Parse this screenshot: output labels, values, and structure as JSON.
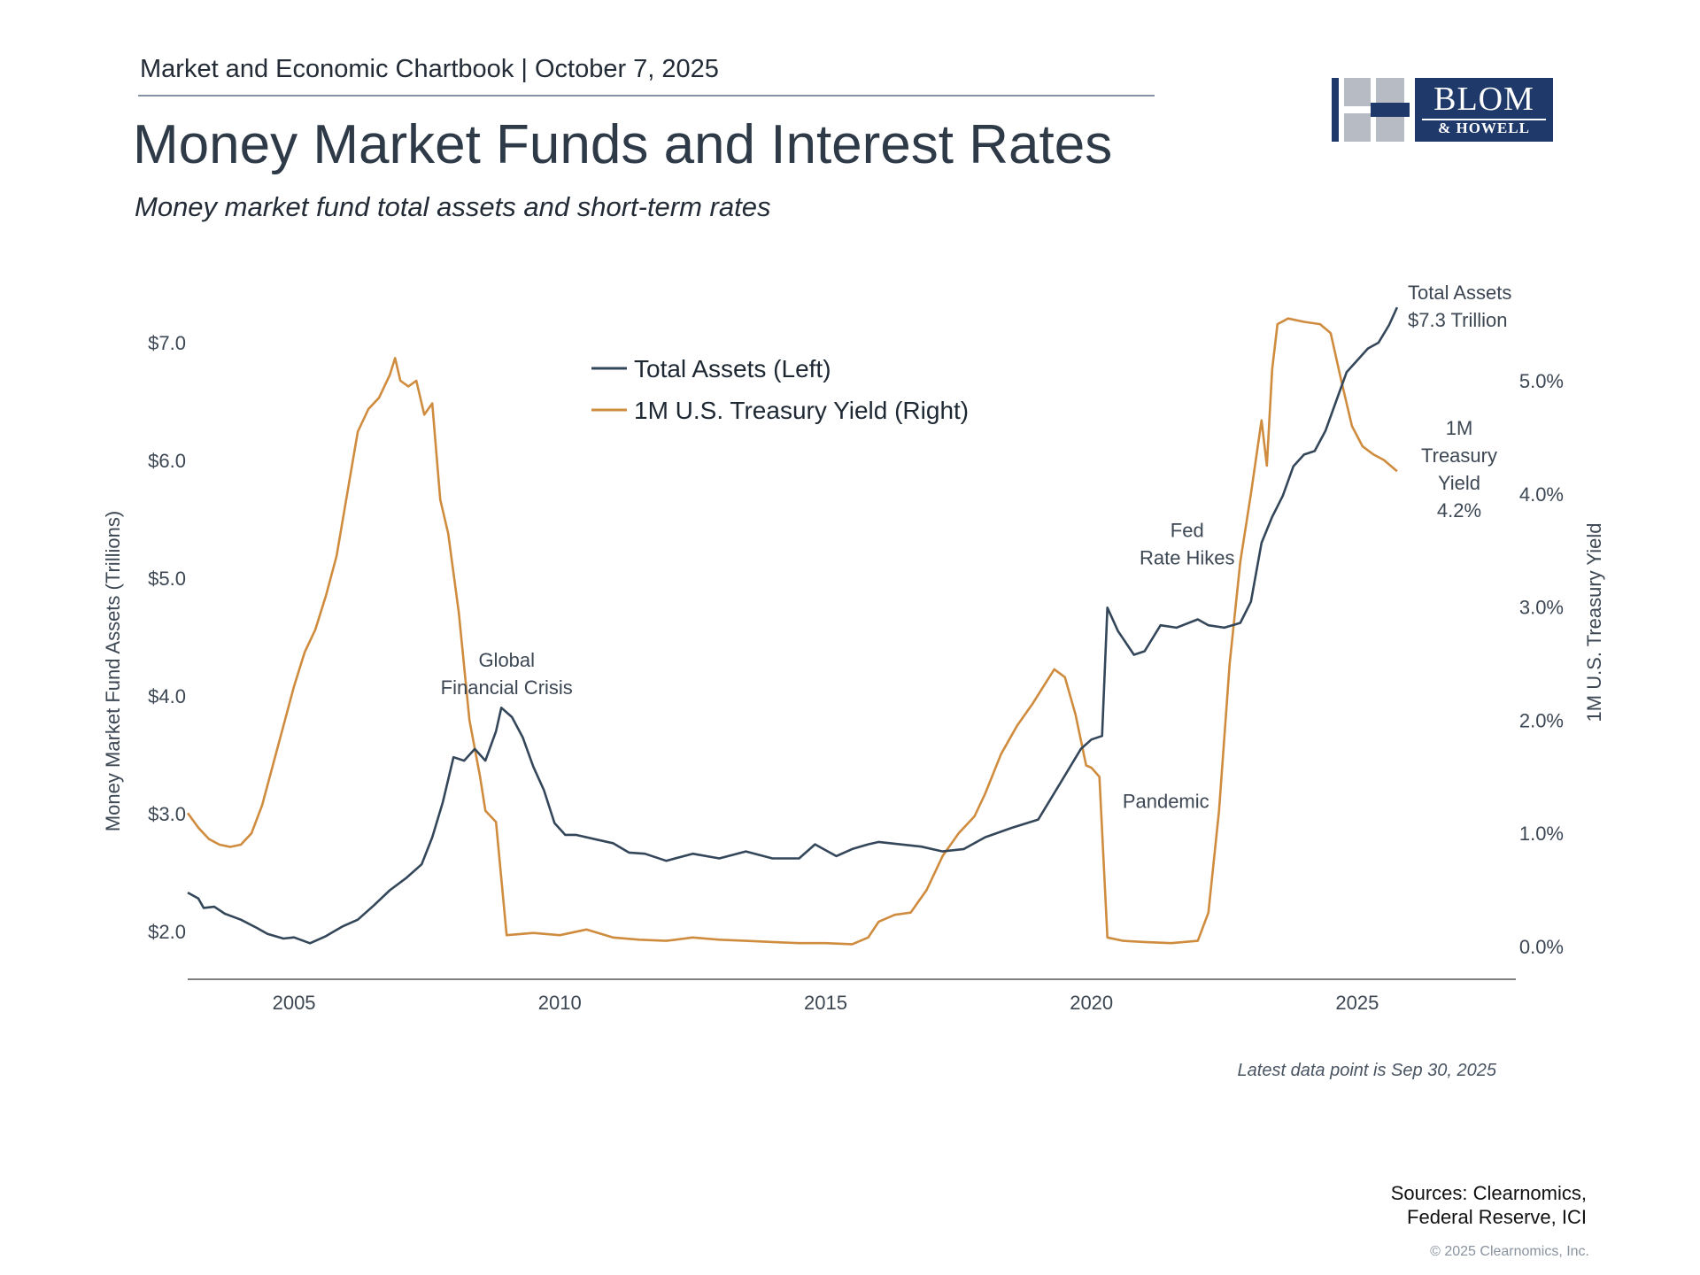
{
  "header": {
    "kicker": "Market and Economic Chartbook | October 7, 2025",
    "title": "Money Market Funds and Interest Rates",
    "subtitle": "Money market fund total assets and short-term rates"
  },
  "logo": {
    "line1": "BLOM",
    "line2": "& HOWELL",
    "color": "#1f3a6a"
  },
  "colors": {
    "assets": "#34475a",
    "yield": "#d08c3e",
    "axis": "#555555",
    "text": "#3c4753"
  },
  "chart_data": {
    "type": "line",
    "title": "",
    "ylabel_left": "Money Market Fund Assets (Trillions)",
    "ylabel_right": "1M U.S. Treasury Yield",
    "xlim": [
      2003.0,
      2028.0
    ],
    "x_ticks": [
      2005,
      2010,
      2015,
      2020,
      2025
    ],
    "y_left": {
      "ylim": [
        1.6,
        7.6
      ],
      "ticks": [
        2,
        3,
        4,
        5,
        6,
        7
      ],
      "tick_labels": [
        "$2.0",
        "$3.0",
        "$4.0",
        "$5.0",
        "$6.0",
        "$7.0"
      ]
    },
    "y_right": {
      "ylim": [
        -0.3,
        5.6
      ],
      "ticks": [
        0,
        1,
        2,
        3,
        4,
        5
      ],
      "tick_labels": [
        "0.0%",
        "1.0%",
        "2.0%",
        "3.0%",
        "4.0%",
        "5.0%"
      ]
    },
    "legend": {
      "placement": "top-center",
      "entries": [
        "Total Assets (Left)",
        "1M U.S. Treasury Yield (Right)"
      ]
    },
    "series": [
      {
        "name": "Total Assets (Left)",
        "axis": "left",
        "x": [
          2003.0,
          2003.2,
          2003.3,
          2003.5,
          2003.7,
          2004.0,
          2004.3,
          2004.5,
          2004.8,
          2005.0,
          2005.3,
          2005.6,
          2005.9,
          2006.2,
          2006.5,
          2006.8,
          2007.1,
          2007.4,
          2007.6,
          2007.8,
          2008.0,
          2008.2,
          2008.4,
          2008.6,
          2008.8,
          2008.9,
          2009.1,
          2009.3,
          2009.5,
          2009.7,
          2009.9,
          2010.1,
          2010.3,
          2010.7,
          2011.0,
          2011.3,
          2011.6,
          2012.0,
          2012.5,
          2013.0,
          2013.5,
          2014.0,
          2014.5,
          2014.8,
          2015.2,
          2015.5,
          2015.8,
          2016.0,
          2016.4,
          2016.8,
          2017.2,
          2017.6,
          2018.0,
          2018.5,
          2019.0,
          2019.4,
          2019.8,
          2020.0,
          2020.2,
          2020.3,
          2020.5,
          2020.8,
          2021.0,
          2021.3,
          2021.6,
          2022.0,
          2022.2,
          2022.5,
          2022.8,
          2023.0,
          2023.2,
          2023.4,
          2023.6,
          2023.8,
          2024.0,
          2024.2,
          2024.4,
          2024.6,
          2024.8,
          2025.0,
          2025.2,
          2025.4,
          2025.6,
          2025.75
        ],
        "values": [
          2.33,
          2.28,
          2.2,
          2.21,
          2.15,
          2.1,
          2.03,
          1.98,
          1.94,
          1.95,
          1.9,
          1.96,
          2.04,
          2.1,
          2.22,
          2.35,
          2.45,
          2.57,
          2.8,
          3.1,
          3.48,
          3.45,
          3.55,
          3.45,
          3.7,
          3.9,
          3.82,
          3.65,
          3.4,
          3.2,
          2.92,
          2.82,
          2.82,
          2.78,
          2.75,
          2.67,
          2.66,
          2.6,
          2.66,
          2.62,
          2.68,
          2.62,
          2.62,
          2.74,
          2.64,
          2.7,
          2.74,
          2.76,
          2.74,
          2.72,
          2.68,
          2.7,
          2.8,
          2.88,
          2.95,
          3.25,
          3.55,
          3.63,
          3.66,
          4.75,
          4.55,
          4.35,
          4.38,
          4.6,
          4.58,
          4.65,
          4.6,
          4.58,
          4.62,
          4.8,
          5.3,
          5.52,
          5.7,
          5.95,
          6.05,
          6.08,
          6.25,
          6.5,
          6.75,
          6.85,
          6.95,
          7.0,
          7.15,
          7.3
        ]
      },
      {
        "name": "1M U.S. Treasury Yield (Right)",
        "axis": "right",
        "x": [
          2003.0,
          2003.2,
          2003.4,
          2003.6,
          2003.8,
          2004.0,
          2004.2,
          2004.4,
          2004.6,
          2004.8,
          2005.0,
          2005.2,
          2005.4,
          2005.6,
          2005.8,
          2006.0,
          2006.2,
          2006.4,
          2006.6,
          2006.8,
          2006.9,
          2007.0,
          2007.15,
          2007.3,
          2007.45,
          2007.6,
          2007.75,
          2007.9,
          2008.1,
          2008.3,
          2008.5,
          2008.6,
          2008.8,
          2009.0,
          2009.5,
          2010.0,
          2010.5,
          2011.0,
          2011.5,
          2012.0,
          2012.5,
          2013.0,
          2013.5,
          2014.0,
          2014.5,
          2015.0,
          2015.5,
          2015.8,
          2016.0,
          2016.3,
          2016.6,
          2016.9,
          2017.2,
          2017.5,
          2017.8,
          2018.0,
          2018.3,
          2018.6,
          2018.9,
          2019.1,
          2019.3,
          2019.5,
          2019.7,
          2019.9,
          2020.0,
          2020.15,
          2020.3,
          2020.6,
          2021.0,
          2021.5,
          2022.0,
          2022.2,
          2022.4,
          2022.6,
          2022.8,
          2023.0,
          2023.2,
          2023.3,
          2023.4,
          2023.5,
          2023.7,
          2024.0,
          2024.3,
          2024.5,
          2024.7,
          2024.9,
          2025.1,
          2025.3,
          2025.5,
          2025.75
        ],
        "values": [
          1.18,
          1.05,
          0.95,
          0.9,
          0.88,
          0.9,
          1.0,
          1.25,
          1.6,
          1.95,
          2.3,
          2.6,
          2.8,
          3.1,
          3.45,
          4.0,
          4.55,
          4.75,
          4.85,
          5.05,
          5.2,
          5.0,
          4.95,
          5.0,
          4.7,
          4.8,
          3.95,
          3.65,
          2.95,
          2.0,
          1.5,
          1.2,
          1.1,
          0.1,
          0.12,
          0.1,
          0.15,
          0.08,
          0.06,
          0.05,
          0.08,
          0.06,
          0.05,
          0.04,
          0.03,
          0.03,
          0.02,
          0.08,
          0.22,
          0.28,
          0.3,
          0.5,
          0.8,
          1.0,
          1.15,
          1.35,
          1.7,
          1.95,
          2.15,
          2.3,
          2.45,
          2.38,
          2.05,
          1.6,
          1.58,
          1.5,
          0.08,
          0.05,
          0.04,
          0.03,
          0.05,
          0.3,
          1.2,
          2.5,
          3.4,
          4.0,
          4.65,
          4.25,
          5.1,
          5.5,
          5.55,
          5.52,
          5.5,
          5.42,
          5.0,
          4.6,
          4.42,
          4.35,
          4.3,
          4.2
        ]
      }
    ],
    "annotations": [
      {
        "lines": [
          "Global",
          "Financial Crisis"
        ],
        "x": 2009.0,
        "y_left": 4.25
      },
      {
        "lines": [
          "Pandemic"
        ],
        "x": 2021.4,
        "y_left": 3.05
      },
      {
        "lines": [
          "Fed",
          "Rate Hikes"
        ],
        "x": 2021.8,
        "y_left": 5.35
      }
    ],
    "end_labels": {
      "assets": [
        "Total Assets",
        "$7.3 Trillion"
      ],
      "yield": [
        "1M",
        "Treasury",
        "Yield",
        "4.2%"
      ]
    }
  },
  "footer": {
    "latest": "Latest data point is Sep 30, 2025",
    "sources_1": "Sources: Clearnomics,",
    "sources_2": "Federal Reserve, ICI",
    "copyright": "© 2025 Clearnomics, Inc."
  }
}
